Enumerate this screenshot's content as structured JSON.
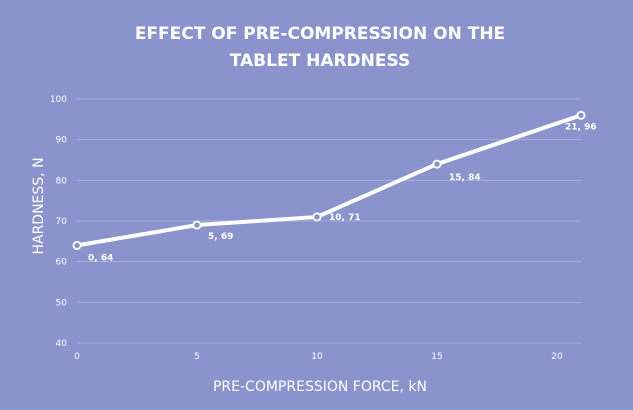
{
  "chart_data": {
    "type": "line",
    "title_line1": "EFFECT OF PRE-COMPRESSION ON THE",
    "title_line2": "TABLET HARDNESS",
    "xlabel": "PRE-COMPRESSION FORCE, kN",
    "ylabel": "HARDNESS, N",
    "xlim": [
      0,
      21
    ],
    "ylim": [
      40,
      100
    ],
    "x_ticks": [
      0,
      5,
      10,
      15,
      20
    ],
    "y_ticks": [
      40,
      50,
      60,
      70,
      80,
      90,
      100
    ],
    "grid": true,
    "legend": "none",
    "line_color": "#ffffff",
    "background_color": "#8a93cb",
    "series": [
      {
        "points": [
          {
            "x": 0,
            "y": 64,
            "label": "0, 64"
          },
          {
            "x": 5,
            "y": 69,
            "label": "5, 69"
          },
          {
            "x": 10,
            "y": 71,
            "label": "10, 71"
          },
          {
            "x": 15,
            "y": 84,
            "label": "15, 84"
          },
          {
            "x": 21,
            "y": 96,
            "label": "21, 96"
          }
        ]
      }
    ]
  }
}
